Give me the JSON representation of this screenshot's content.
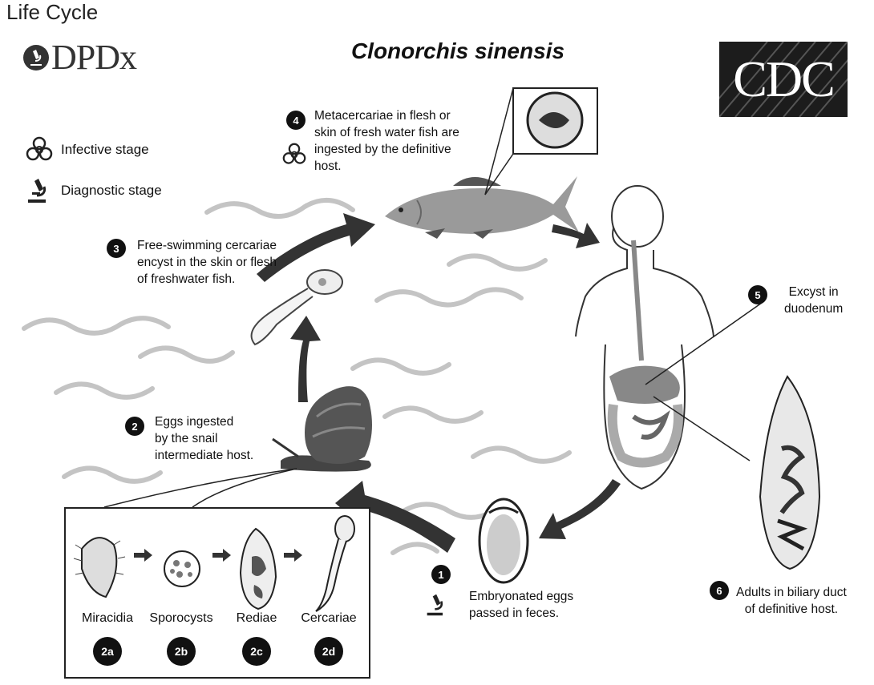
{
  "header": {
    "page_title": "Life Cycle",
    "logo_left": "DPDx",
    "species": "Clonorchis sinensis",
    "logo_right": "CDC"
  },
  "legend": {
    "infective": "Infective stage",
    "diagnostic": "Diagnostic stage"
  },
  "steps": [
    {
      "badge": "1",
      "lines": [
        "Embryonated eggs",
        "passed in feces."
      ]
    },
    {
      "badge": "2",
      "lines": [
        "Eggs ingested",
        "by the snail",
        "intermediate host."
      ]
    },
    {
      "badge": "3",
      "lines": [
        "Free-swimming cercariae",
        "encyst in the skin or flesh",
        "of freshwater fish."
      ]
    },
    {
      "badge": "4",
      "lines": [
        "Metacercariae in flesh or",
        "skin of fresh water fish are",
        "ingested by the definitive",
        "host."
      ]
    },
    {
      "badge": "5",
      "lines": [
        "Excyst in",
        "duodenum"
      ]
    },
    {
      "badge": "6",
      "lines": [
        "Adults in biliary duct",
        "of definitive host."
      ]
    }
  ],
  "development": [
    {
      "label": "Miracidia",
      "badge": "2a"
    },
    {
      "label": "Sporocysts",
      "badge": "2b"
    },
    {
      "label": "Rediae",
      "badge": "2c"
    },
    {
      "label": "Cercariae",
      "badge": "2d"
    }
  ],
  "colors": {
    "badge": "#111111",
    "arrow": "#333333",
    "water": "#bdbdbd",
    "fish": "#8a8a8a"
  }
}
